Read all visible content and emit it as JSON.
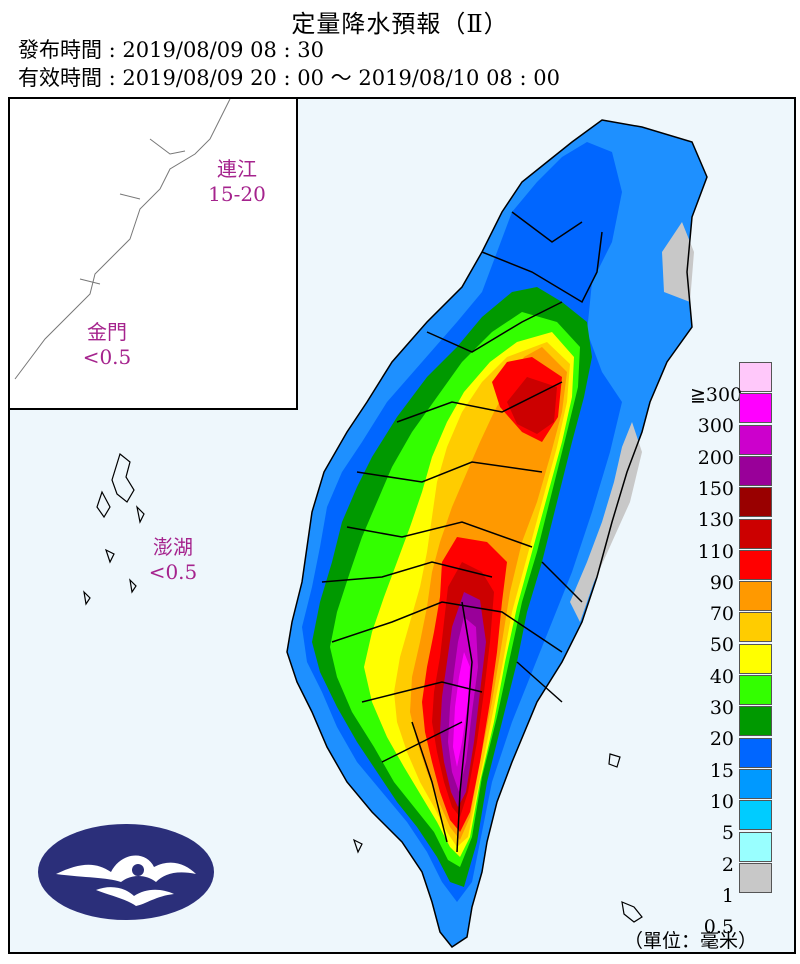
{
  "header": {
    "title": "定量降水預報（Ⅱ）",
    "issue_time": "發布時間 : 2019/08/09 08 : 30",
    "valid_time": "有效時間 : 2019/08/09 20 : 00 ～ 2019/08/10 08 : 00"
  },
  "regions": {
    "lienchiang": {
      "name": "連江",
      "value": "15-20"
    },
    "kinmen": {
      "name": "金門",
      "value": "<0.5"
    },
    "penghu": {
      "name": "澎湖",
      "value": "<0.5"
    }
  },
  "legend": {
    "unit": "（單位：毫米）",
    "levels": [
      {
        "label": "≧300",
        "color": "#ffc8fa"
      },
      {
        "label": "300",
        "color": "#ff00ff"
      },
      {
        "label": "200",
        "color": "#cc00cc"
      },
      {
        "label": "150",
        "color": "#990099"
      },
      {
        "label": "130",
        "color": "#990000"
      },
      {
        "label": "110",
        "color": "#cc0000"
      },
      {
        "label": "90",
        "color": "#ff0000"
      },
      {
        "label": "70",
        "color": "#ff9900"
      },
      {
        "label": "50",
        "color": "#ffcc00"
      },
      {
        "label": "40",
        "color": "#ffff00"
      },
      {
        "label": "30",
        "color": "#33ff00"
      },
      {
        "label": "20",
        "color": "#009900"
      },
      {
        "label": "15",
        "color": "#0066ff"
      },
      {
        "label": "10",
        "color": "#0099ff"
      },
      {
        "label": "5",
        "color": "#00ccff"
      },
      {
        "label": "2",
        "color": "#99ffff"
      },
      {
        "label": "1",
        "color": "#c8c8c8"
      },
      {
        "label": "0.5",
        "color": ""
      }
    ]
  },
  "logo": {
    "name": "cwb-logo-icon",
    "color": "#2b2f7a"
  }
}
